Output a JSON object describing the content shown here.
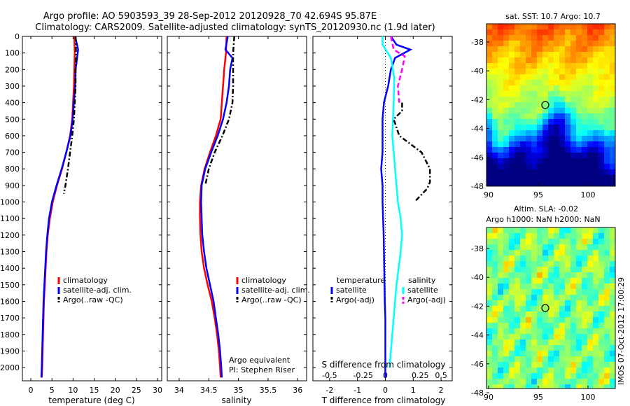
{
  "title_line1": "Argo profile: AO 5903593_39 28-Sep-2012 20120928_70 42.694S 95.87E",
  "title_line2": "Climatology: CARS2009. Satellite-adjusted climatology: synTS_20120930.nc (1.9d later)",
  "footer_credit": "IMOS 07-Oct-2012 17:00:29",
  "colors": {
    "clim": "#ff0000",
    "sat": "#0000ff",
    "argo": "#000000",
    "sat_s": "#00ffff",
    "argo_s": "#ff00ff"
  },
  "chart_data": [
    {
      "type": "line",
      "title": "",
      "xlabel": "temperature (deg C)",
      "ylabel": "",
      "xlim": [
        -2,
        31
      ],
      "ylim": [
        2080,
        0
      ],
      "xticks": [
        0,
        5,
        10,
        15,
        20,
        25,
        30
      ],
      "xtick_labels": [
        "0",
        "5",
        "10",
        "15",
        "20",
        "25",
        "30"
      ],
      "yticks": [
        0,
        100,
        200,
        300,
        400,
        500,
        600,
        700,
        800,
        900,
        1000,
        1100,
        1200,
        1300,
        1400,
        1500,
        1600,
        1700,
        1800,
        1900,
        2000
      ],
      "legend": {
        "position": "lower-right",
        "entries": [
          "climatology",
          "satellite-adj. clim.",
          "Argo(..raw -QC)"
        ]
      },
      "series": [
        {
          "name": "climatology",
          "color": "#ff0000",
          "style": "solid",
          "points": [
            [
              10.3,
              0
            ],
            [
              10.4,
              100
            ],
            [
              10.3,
              200
            ],
            [
              10.2,
              300
            ],
            [
              10.0,
              400
            ],
            [
              9.8,
              500
            ],
            [
              9.3,
              600
            ],
            [
              8.4,
              700
            ],
            [
              7.4,
              800
            ],
            [
              6.2,
              900
            ],
            [
              5.2,
              1000
            ],
            [
              4.5,
              1100
            ],
            [
              4.0,
              1200
            ],
            [
              3.7,
              1300
            ],
            [
              3.5,
              1400
            ],
            [
              3.3,
              1500
            ],
            [
              3.1,
              1600
            ],
            [
              3.0,
              1700
            ],
            [
              2.9,
              1800
            ],
            [
              2.8,
              1900
            ],
            [
              2.7,
              2000
            ],
            [
              2.6,
              2060
            ]
          ]
        },
        {
          "name": "satellite-adj. clim.",
          "color": "#0000ff",
          "style": "solid",
          "points": [
            [
              10.5,
              0
            ],
            [
              11.2,
              80
            ],
            [
              10.6,
              200
            ],
            [
              10.5,
              300
            ],
            [
              10.2,
              400
            ],
            [
              9.9,
              500
            ],
            [
              9.4,
              600
            ],
            [
              8.4,
              700
            ],
            [
              7.3,
              800
            ],
            [
              6.1,
              900
            ],
            [
              5.0,
              1000
            ],
            [
              4.3,
              1100
            ],
            [
              3.9,
              1200
            ],
            [
              3.6,
              1300
            ],
            [
              3.4,
              1400
            ],
            [
              3.2,
              1500
            ],
            [
              3.0,
              1600
            ],
            [
              2.9,
              1700
            ],
            [
              2.8,
              1800
            ],
            [
              2.7,
              1900
            ],
            [
              2.6,
              2000
            ],
            [
              2.5,
              2060
            ]
          ]
        },
        {
          "name": "Argo(..raw -QC)",
          "color": "#000000",
          "style": "dashdot",
          "points": [
            [
              10.6,
              0
            ],
            [
              10.7,
              100
            ],
            [
              10.6,
              200
            ],
            [
              10.6,
              300
            ],
            [
              10.4,
              400
            ],
            [
              10.2,
              500
            ],
            [
              9.8,
              600
            ],
            [
              9.3,
              700
            ],
            [
              8.8,
              800
            ],
            [
              8.2,
              900
            ],
            [
              7.8,
              950
            ]
          ]
        }
      ]
    },
    {
      "type": "line",
      "title": "",
      "xlabel": "salinity",
      "ylabel": "",
      "xlim": [
        33.8,
        36.15
      ],
      "ylim": [
        2080,
        0
      ],
      "xticks": [
        34,
        34.5,
        35,
        35.5,
        36
      ],
      "xtick_labels": [
        "34",
        "34.5",
        "35",
        "35.5",
        "36"
      ],
      "legend": {
        "position": "lower-right",
        "entries": [
          "climatology",
          "satellite-adj. clim.",
          "Argo(..raw -QC)"
        ]
      },
      "annotation": [
        "Argo equivalent",
        "PI: Stephen Riser"
      ],
      "series": [
        {
          "name": "climatology",
          "color": "#ff0000",
          "style": "solid",
          "points": [
            [
              34.8,
              0
            ],
            [
              34.79,
              100
            ],
            [
              34.76,
              200
            ],
            [
              34.74,
              300
            ],
            [
              34.72,
              400
            ],
            [
              34.7,
              500
            ],
            [
              34.62,
              600
            ],
            [
              34.52,
              700
            ],
            [
              34.43,
              800
            ],
            [
              34.37,
              900
            ],
            [
              34.35,
              1000
            ],
            [
              34.35,
              1100
            ],
            [
              34.36,
              1200
            ],
            [
              34.38,
              1300
            ],
            [
              34.42,
              1400
            ],
            [
              34.48,
              1500
            ],
            [
              34.55,
              1600
            ],
            [
              34.6,
              1700
            ],
            [
              34.64,
              1800
            ],
            [
              34.67,
              1900
            ],
            [
              34.69,
              2000
            ],
            [
              34.7,
              2060
            ]
          ]
        },
        {
          "name": "satellite-adj. clim.",
          "color": "#0000ff",
          "style": "solid",
          "points": [
            [
              34.82,
              0
            ],
            [
              34.78,
              80
            ],
            [
              34.9,
              130
            ],
            [
              34.86,
              200
            ],
            [
              34.84,
              300
            ],
            [
              34.8,
              400
            ],
            [
              34.74,
              500
            ],
            [
              34.65,
              600
            ],
            [
              34.54,
              700
            ],
            [
              34.44,
              800
            ],
            [
              34.38,
              900
            ],
            [
              34.37,
              1000
            ],
            [
              34.38,
              1100
            ],
            [
              34.39,
              1200
            ],
            [
              34.42,
              1300
            ],
            [
              34.46,
              1400
            ],
            [
              34.52,
              1500
            ],
            [
              34.58,
              1600
            ],
            [
              34.62,
              1700
            ],
            [
              34.66,
              1800
            ],
            [
              34.69,
              1900
            ],
            [
              34.71,
              2000
            ],
            [
              34.72,
              2060
            ]
          ]
        },
        {
          "name": "Argo(..raw -QC)",
          "color": "#000000",
          "style": "dashdot",
          "points": [
            [
              34.93,
              0
            ],
            [
              34.91,
              100
            ],
            [
              34.91,
              200
            ],
            [
              34.91,
              300
            ],
            [
              34.9,
              400
            ],
            [
              34.84,
              500
            ],
            [
              34.73,
              600
            ],
            [
              34.6,
              700
            ],
            [
              34.5,
              800
            ],
            [
              34.44,
              900
            ]
          ]
        }
      ]
    },
    {
      "type": "line",
      "title": "",
      "xlabel": "T difference from climatology",
      "xlabel2": "S difference from climatology",
      "ylabel": "",
      "xlim": [
        -2.6,
        2.4
      ],
      "ylim": [
        2080,
        0
      ],
      "xticks": [
        -2,
        -1,
        0,
        1,
        2
      ],
      "xtick_labels": [
        "-2",
        "-1",
        "0",
        "1",
        "2"
      ],
      "xticks2": [
        -2,
        -1,
        0,
        1,
        2
      ],
      "xtick2_labels": [
        "-0.5",
        "-0.25",
        "0",
        "0.25",
        "0.5"
      ],
      "legend": {
        "position": "lower",
        "entries": [
          "temperature",
          "satellite",
          "Argo(-adj)",
          "salinity",
          "satellite",
          "Argo(-adj)"
        ]
      },
      "series": [
        {
          "name": "satellite",
          "quantity": "temperature",
          "color": "#0000ff",
          "style": "solid",
          "points": [
            [
              0.2,
              0
            ],
            [
              0.4,
              50
            ],
            [
              0.9,
              80
            ],
            [
              0.35,
              130
            ],
            [
              0.2,
              200
            ],
            [
              0.1,
              300
            ],
            [
              -0.05,
              400
            ],
            [
              -0.1,
              500
            ],
            [
              -0.1,
              600
            ],
            [
              -0.1,
              700
            ],
            [
              -0.15,
              800
            ],
            [
              -0.1,
              900
            ],
            [
              -0.1,
              1000
            ],
            [
              -0.08,
              1100
            ],
            [
              -0.06,
              1200
            ],
            [
              -0.05,
              1300
            ],
            [
              -0.04,
              1400
            ],
            [
              -0.03,
              1500
            ],
            [
              -0.02,
              1600
            ],
            [
              0,
              1700
            ],
            [
              0,
              1800
            ],
            [
              0,
              1900
            ],
            [
              0,
              2000
            ],
            [
              0,
              2060
            ]
          ]
        },
        {
          "name": "satellite",
          "quantity": "salinity",
          "color": "#00ffff",
          "style": "solid",
          "points": [
            [
              -0.1,
              0
            ],
            [
              -0.1,
              50
            ],
            [
              0.2,
              130
            ],
            [
              0.32,
              250
            ],
            [
              0.3,
              400
            ],
            [
              0.25,
              600
            ],
            [
              0.35,
              800
            ],
            [
              0.45,
              1000
            ],
            [
              0.55,
              1100
            ],
            [
              0.6,
              1200
            ],
            [
              0.55,
              1300
            ],
            [
              0.4,
              1500
            ],
            [
              0.3,
              1700
            ],
            [
              0.2,
              1900
            ],
            [
              0.15,
              2000
            ]
          ]
        },
        {
          "name": "Argo(-adj)",
          "quantity": "temperature",
          "color": "#000000",
          "style": "dashdot",
          "points": [
            [
              0.6,
              400
            ],
            [
              0.6,
              450
            ],
            [
              0.3,
              500
            ],
            [
              0.5,
              600
            ],
            [
              1.3,
              700
            ],
            [
              1.6,
              800
            ],
            [
              1.6,
              880
            ],
            [
              1.5,
              920
            ],
            [
              1.1,
              990
            ]
          ]
        },
        {
          "name": "Argo(-adj)",
          "quantity": "salinity",
          "color": "#ff00ff",
          "style": "dashed",
          "points": [
            [
              0.2,
              0
            ],
            [
              0.3,
              80
            ],
            [
              0.7,
              120
            ],
            [
              0.6,
              200
            ],
            [
              0.45,
              300
            ],
            [
              0.5,
              400
            ]
          ]
        }
      ]
    }
  ],
  "maps": [
    {
      "title": "sat. SST: 10.7 Argo: 10.7",
      "subtitle": "",
      "xticks": [
        "90",
        "95",
        "100"
      ],
      "yticks": [
        "-38",
        "-40",
        "-42",
        "-44",
        "-46",
        "-48"
      ]
    },
    {
      "title": "Altim. SLA: -0.02",
      "subtitle": "Argo h1000: NaN h2000: NaN",
      "xticks": [
        "90",
        "95",
        "100"
      ],
      "yticks": [
        "-38",
        "-40",
        "-42",
        "-44",
        "-46",
        "-48"
      ]
    }
  ]
}
